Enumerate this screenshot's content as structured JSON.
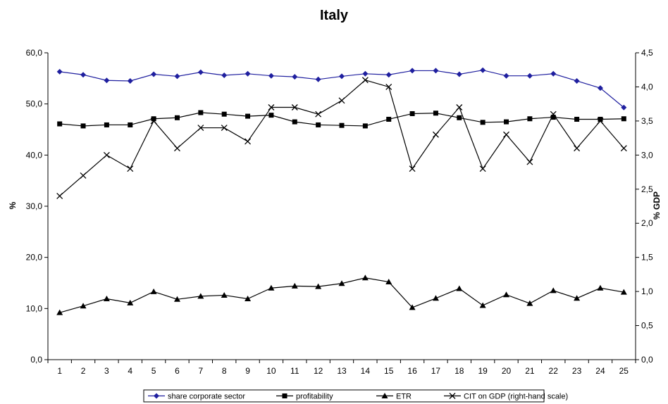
{
  "chart_data": {
    "type": "line",
    "title": "Italy",
    "xlabel": "",
    "ylabel": "%",
    "y2label": "% GDP",
    "x": [
      1,
      2,
      3,
      4,
      5,
      6,
      7,
      8,
      9,
      10,
      11,
      12,
      13,
      14,
      15,
      16,
      17,
      18,
      19,
      20,
      21,
      22,
      23,
      24,
      25
    ],
    "x_ticks": [
      "1",
      "2",
      "3",
      "4",
      "5",
      "6",
      "7",
      "8",
      "9",
      "10",
      "11",
      "12",
      "13",
      "14",
      "15",
      "16",
      "17",
      "18",
      "19",
      "20",
      "21",
      "22",
      "23",
      "24",
      "25"
    ],
    "ylim": [
      0,
      60
    ],
    "y2lim": [
      0,
      4.5
    ],
    "y_ticks": [
      "0,0",
      "10,0",
      "20,0",
      "30,0",
      "40,0",
      "50,0",
      "60,0"
    ],
    "y2_ticks": [
      "0,0",
      "0,5",
      "1,0",
      "1,5",
      "2,0",
      "2,5",
      "3,0",
      "3,5",
      "4,0",
      "4,5"
    ],
    "grid": false,
    "legend_placement": "bottom",
    "series": [
      {
        "name": "share corporate sector",
        "marker": "diamond",
        "color": "#1f1f9f",
        "axis": "left",
        "values": [
          56.3,
          55.7,
          54.6,
          54.5,
          55.8,
          55.4,
          56.2,
          55.6,
          55.9,
          55.5,
          55.3,
          54.8,
          55.4,
          55.9,
          55.7,
          56.5,
          56.5,
          55.8,
          56.6,
          55.5,
          55.5,
          55.9,
          54.5,
          53.1,
          49.3
        ]
      },
      {
        "name": "profitability",
        "marker": "square",
        "color": "#000000",
        "axis": "left",
        "values": [
          46.1,
          45.7,
          45.9,
          45.9,
          47.1,
          47.3,
          48.3,
          48.0,
          47.6,
          47.8,
          46.5,
          45.9,
          45.8,
          45.7,
          47.0,
          48.1,
          48.2,
          47.3,
          46.4,
          46.5,
          47.1,
          47.4,
          47.0,
          47.0,
          47.1
        ]
      },
      {
        "name": "ETR",
        "marker": "triangle",
        "color": "#000000",
        "axis": "left",
        "values": [
          9.2,
          10.5,
          11.9,
          11.1,
          13.3,
          11.8,
          12.4,
          12.6,
          11.9,
          14.0,
          14.4,
          14.3,
          14.9,
          16.0,
          15.2,
          10.2,
          12.0,
          13.9,
          10.6,
          12.7,
          11.0,
          13.5,
          12.0,
          14.0,
          13.2
        ]
      },
      {
        "name": "CIT on GDP (right-hand scale)",
        "marker": "x",
        "color": "#000000",
        "axis": "right",
        "values": [
          2.4,
          2.7,
          3.0,
          2.8,
          3.5,
          3.1,
          3.4,
          3.4,
          3.2,
          3.7,
          3.7,
          3.6,
          3.8,
          4.1,
          4.0,
          2.8,
          3.3,
          3.7,
          2.8,
          3.3,
          2.9,
          3.6,
          3.1,
          3.5,
          3.1
        ]
      }
    ]
  }
}
